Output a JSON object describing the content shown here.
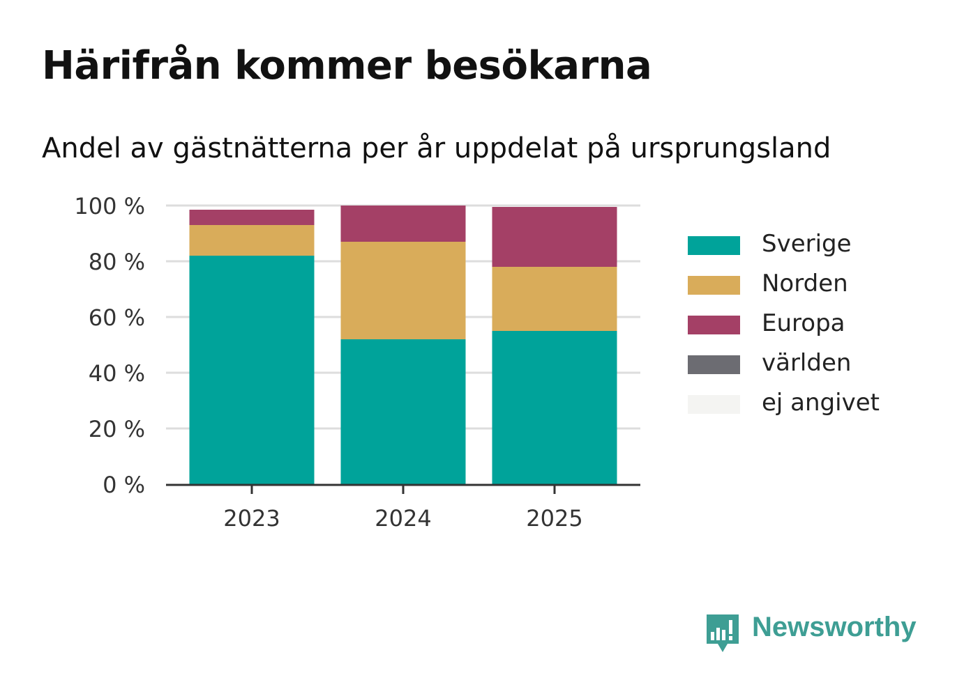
{
  "title": "Härifrån kommer besökarna",
  "subtitle": "Andel av gästnätterna per år uppdelat på ursprungsland",
  "brand": {
    "name": "Newsworthy",
    "color": "#3e9e94",
    "icon": "newsworthy-logo-icon"
  },
  "chart_data": {
    "type": "bar",
    "stacked": true,
    "categories": [
      "2023",
      "2024",
      "2025"
    ],
    "y_ticks": [
      "0 %",
      "20 %",
      "40 %",
      "60 %",
      "80 %",
      "100 %"
    ],
    "ylim": [
      0,
      100
    ],
    "grid": true,
    "legend_placement": "right",
    "series": [
      {
        "name": "Sverige",
        "color": "#00a39a",
        "values": [
          82,
          52,
          55
        ]
      },
      {
        "name": "Norden",
        "color": "#d9ac5a",
        "values": [
          11,
          35,
          23
        ]
      },
      {
        "name": "Europa",
        "color": "#a44066",
        "values": [
          5.5,
          13,
          21.5
        ]
      },
      {
        "name": "världen",
        "color": "#6c6c72",
        "values": [
          0,
          0,
          0
        ]
      },
      {
        "name": "ej angivet",
        "color": "#f4f4f2",
        "values": [
          0,
          0,
          0
        ]
      }
    ]
  }
}
